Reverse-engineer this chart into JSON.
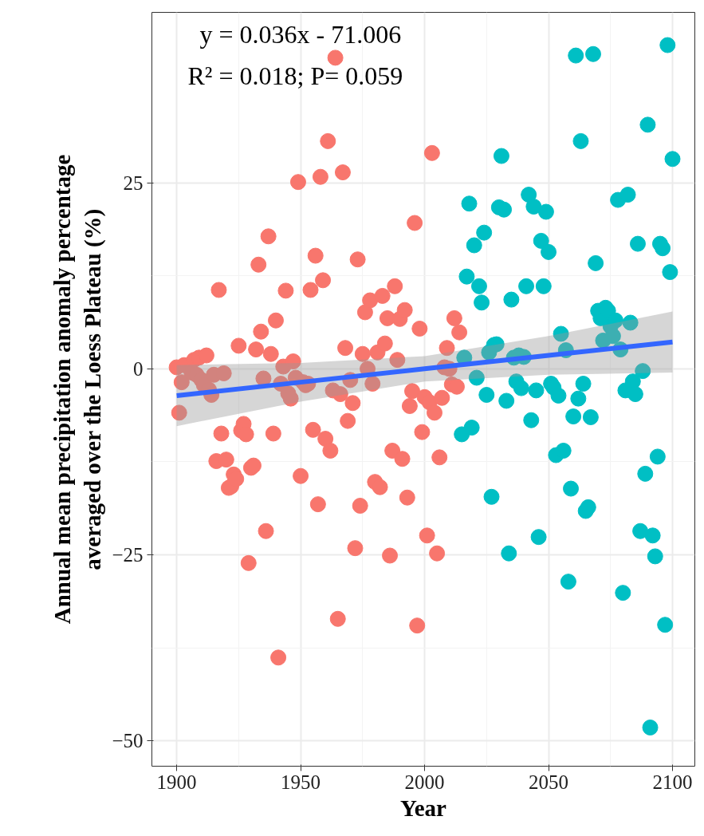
{
  "chart_data": {
    "type": "scatter",
    "xlabel": "Year",
    "ylabel": "Annual mean precipitation anomaly percentage\naveraged over the Loess Plateau (%)",
    "annotations": [
      "y = 0.036x - 71.006",
      "R² = 0.018; P= 0.059"
    ],
    "xlim": [
      1890,
      2109
    ],
    "ylim": [
      -53.4,
      47.9
    ],
    "xticks": [
      1900,
      1950,
      2000,
      2050,
      2100
    ],
    "yticks": [
      -50,
      -25,
      0,
      25
    ],
    "grid": true,
    "marker": "circle",
    "series": [
      {
        "color": "#f8766d",
        "x": [
          1900,
          1901,
          1902,
          1903,
          1906,
          1907,
          1908,
          1909,
          1910,
          1911,
          1912,
          1913,
          1914,
          1915,
          1916,
          1917,
          1918,
          1919,
          1920,
          1921,
          1922,
          1923,
          1924,
          1925,
          1926,
          1927,
          1928,
          1929,
          1930,
          1931,
          1932,
          1933,
          1934,
          1935,
          1936,
          1937,
          1938,
          1939,
          1940,
          1941,
          1942,
          1943,
          1944,
          1945,
          1946,
          1947,
          1948,
          1949,
          1950,
          1951,
          1952,
          1953,
          1954,
          1955,
          1956,
          1957,
          1958,
          1959,
          1960,
          1961,
          1962,
          1963,
          1964,
          1965,
          1966,
          1967,
          1968,
          1969,
          1970,
          1971,
          1972,
          1973,
          1974,
          1975,
          1976,
          1977,
          1978,
          1979,
          1980,
          1981,
          1982,
          1983,
          1984,
          1985,
          1986,
          1987,
          1988,
          1989,
          1990,
          1991,
          1992,
          1993,
          1994,
          1995,
          1996,
          1997,
          1998,
          1999,
          2000,
          2001,
          2002,
          2003,
          2004,
          2005,
          2006,
          2007,
          2008,
          2009,
          2010,
          2011,
          2012,
          2013,
          2014
        ],
        "values": [
          0.2,
          -5.9,
          -1.8,
          0.5,
          -0.5,
          1.2,
          -0.8,
          1.5,
          -1.5,
          -2.2,
          1.8,
          -2.8,
          -3.5,
          -0.8,
          -12.4,
          10.6,
          -8.7,
          -0.6,
          -12.2,
          -16,
          -15.8,
          -14.2,
          -14.8,
          3.1,
          -8.3,
          -7.4,
          -8.8,
          -26.1,
          -13.3,
          -13,
          2.6,
          14,
          5,
          -1.3,
          -21.8,
          17.8,
          2,
          -8.7,
          6.5,
          -38.8,
          -2,
          0.3,
          10.5,
          -3.3,
          -4,
          1,
          -1.2,
          25.1,
          -14.4,
          -1.8,
          -2.2,
          -2,
          10.6,
          -8.2,
          15.2,
          -18.2,
          25.8,
          11.9,
          -9.4,
          30.6,
          -11,
          -2.9,
          41.8,
          -33.6,
          -3.4,
          26.4,
          2.8,
          -7,
          -1.5,
          -4.6,
          -24.1,
          14.7,
          -18.4,
          2,
          7.6,
          0,
          9.2,
          -2,
          -15.2,
          2.2,
          -15.9,
          9.8,
          3.4,
          6.8,
          -25.1,
          -11,
          11.1,
          1.2,
          6.7,
          -12.1,
          7.9,
          -17.3,
          -5,
          -3,
          19.6,
          -34.5,
          5.4,
          -8.5,
          -3.8,
          -22.4,
          -4.5,
          29,
          -5.9,
          -24.8,
          -11.9,
          -3.9,
          0.2,
          2.8,
          0,
          -2.1,
          6.8,
          -2.4,
          4.9
        ]
      },
      {
        "color": "#00bfc4",
        "x": [
          2015,
          2016,
          2017,
          2018,
          2019,
          2020,
          2021,
          2022,
          2023,
          2024,
          2025,
          2026,
          2027,
          2028,
          2029,
          2030,
          2031,
          2032,
          2033,
          2034,
          2035,
          2036,
          2037,
          2038,
          2039,
          2040,
          2041,
          2042,
          2043,
          2044,
          2045,
          2046,
          2047,
          2048,
          2049,
          2050,
          2051,
          2052,
          2053,
          2054,
          2055,
          2056,
          2057,
          2058,
          2059,
          2060,
          2061,
          2062,
          2063,
          2064,
          2065,
          2066,
          2067,
          2068,
          2069,
          2070,
          2071,
          2072,
          2073,
          2074,
          2075,
          2076,
          2077,
          2078,
          2079,
          2080,
          2081,
          2082,
          2083,
          2084,
          2085,
          2086,
          2087,
          2088,
          2089,
          2090,
          2091,
          2092,
          2093,
          2094,
          2095,
          2096,
          2097,
          2098,
          2099,
          2100
        ],
        "values": [
          -8.8,
          1.5,
          12.4,
          22.2,
          -7.9,
          16.6,
          -1.2,
          11.1,
          8.9,
          18.3,
          -3.5,
          2.2,
          -17.2,
          3.2,
          3.3,
          21.7,
          28.6,
          21.4,
          -4.3,
          -24.8,
          9.3,
          1.5,
          -1.7,
          1.8,
          -2.6,
          1.6,
          11.1,
          23.4,
          -6.9,
          21.8,
          -2.9,
          -22.6,
          17.2,
          11.1,
          21.1,
          15.7,
          -2,
          -2.5,
          -11.6,
          -3.6,
          4.7,
          -11,
          2.5,
          -28.6,
          -16.1,
          -6.4,
          42.1,
          -4,
          30.6,
          -2,
          -19.1,
          -18.6,
          -6.5,
          42.3,
          14.2,
          7.8,
          6.8,
          3.8,
          8.2,
          7.8,
          5.7,
          4.4,
          6.5,
          22.7,
          2.6,
          -30.1,
          -2.9,
          23.4,
          6.2,
          -1.7,
          -3.4,
          16.8,
          -21.8,
          -0.3,
          -14.1,
          32.8,
          -48.2,
          -22.4,
          -25.2,
          -11.8,
          16.8,
          16.2,
          -34.4,
          43.5,
          13,
          28.2
        ]
      },
      {
        "type": "line",
        "marker": "none",
        "color": "#3366ff",
        "x": [
          1900,
          1950,
          2000,
          2050,
          2100
        ],
        "values": [
          -3.6,
          -1.8,
          0,
          1.8,
          3.6
        ],
        "lower": [
          -7.7,
          -4.4,
          -1.7,
          -0.8,
          -0.5
        ],
        "upper": [
          0.5,
          0.8,
          1.7,
          4.4,
          7.7
        ]
      }
    ]
  }
}
